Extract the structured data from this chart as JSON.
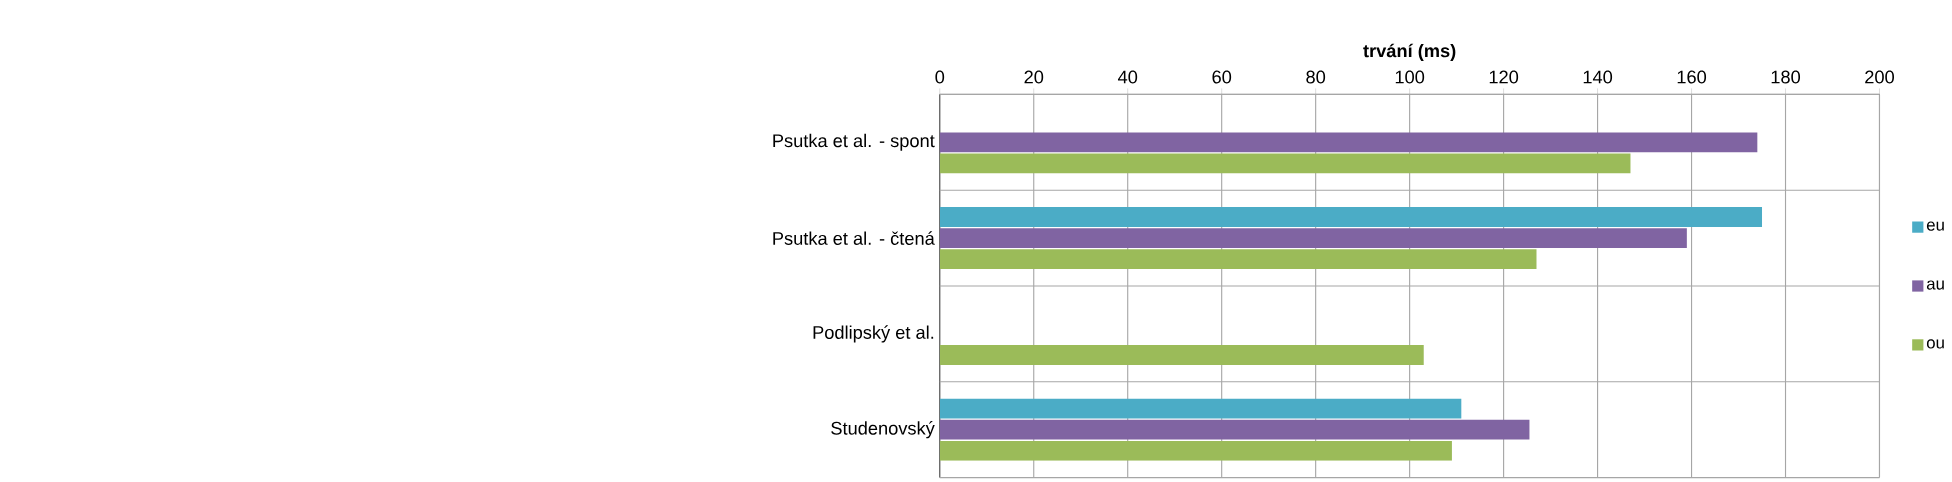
{
  "chart_data": {
    "type": "bar",
    "orientation": "horizontal",
    "xlabel": "trvání (ms)",
    "categories": [
      "Psutka et al. - spont",
      "Psutka et al. - čtená",
      "Podlipský et al.",
      "Studenovský"
    ],
    "series": [
      {
        "name": "eu",
        "color": "#4bacc6",
        "values": [
          null,
          175,
          null,
          111
        ]
      },
      {
        "name": "au",
        "color": "#8064a2",
        "values": [
          174,
          159,
          null,
          125.5
        ]
      },
      {
        "name": "ou",
        "color": "#9bbb59",
        "values": [
          147,
          127,
          103,
          109
        ]
      }
    ],
    "xlim": [
      0,
      200
    ],
    "xticks": [
      0,
      20,
      40,
      60,
      80,
      100,
      120,
      140,
      160,
      180,
      200
    ],
    "grid": true,
    "legend": "right"
  }
}
